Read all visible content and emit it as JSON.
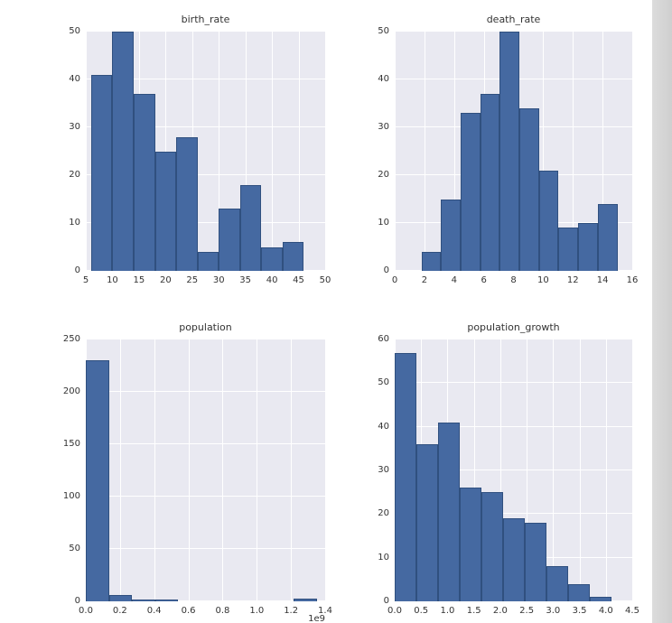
{
  "colors": {
    "axes_background": "#e9e9f1",
    "gridline": "#ffffff",
    "bar_fill": "#4569a1",
    "bar_edge": "#30507f",
    "tick_text": "#333333",
    "right_strip": "#d7d7d7"
  },
  "chart_data": [
    {
      "id": "birth_rate",
      "type": "bar",
      "subtype": "histogram",
      "title": "birth_rate",
      "xlim": [
        5,
        50
      ],
      "ylim": [
        0,
        50
      ],
      "xticks": [
        "5",
        "10",
        "15",
        "20",
        "25",
        "30",
        "35",
        "40",
        "45",
        "50"
      ],
      "yticks": [
        "0",
        "10",
        "20",
        "30",
        "40",
        "50"
      ],
      "grid": true,
      "bin_start": 6,
      "bin_width": 4.0,
      "values": [
        41,
        50,
        37,
        25,
        28,
        4,
        13,
        18,
        5,
        6
      ]
    },
    {
      "id": "death_rate",
      "type": "bar",
      "subtype": "histogram",
      "title": "death_rate",
      "xlim": [
        0,
        16
      ],
      "ylim": [
        0,
        50
      ],
      "xticks": [
        "0",
        "2",
        "4",
        "6",
        "8",
        "10",
        "12",
        "14",
        "16"
      ],
      "yticks": [
        "0",
        "10",
        "20",
        "30",
        "40",
        "50"
      ],
      "grid": true,
      "bin_start": 1.8,
      "bin_width": 1.32,
      "values": [
        4,
        15,
        33,
        37,
        50,
        34,
        21,
        9,
        10,
        14
      ]
    },
    {
      "id": "population",
      "type": "bar",
      "subtype": "histogram",
      "title": "population",
      "xlim": [
        0,
        1.4
      ],
      "ylim": [
        0,
        250
      ],
      "xticks": [
        "0.0",
        "0.2",
        "0.4",
        "0.6",
        "0.8",
        "1.0",
        "1.2",
        "1.4"
      ],
      "yticks": [
        "0",
        "50",
        "100",
        "150",
        "200",
        "250"
      ],
      "grid": true,
      "x_offset_label": "1e9",
      "bin_start": 0,
      "bin_width": 0.135,
      "values": [
        230,
        6,
        2,
        2,
        0,
        0,
        0,
        0,
        0,
        3
      ]
    },
    {
      "id": "population_growth",
      "type": "bar",
      "subtype": "histogram",
      "title": "population_growth",
      "xlim": [
        0,
        4.5
      ],
      "ylim": [
        0,
        60
      ],
      "xticks": [
        "0.0",
        "0.5",
        "1.0",
        "1.5",
        "2.0",
        "2.5",
        "3.0",
        "3.5",
        "4.0",
        "4.5"
      ],
      "yticks": [
        "0",
        "10",
        "20",
        "30",
        "40",
        "50",
        "60"
      ],
      "grid": true,
      "bin_start": 0,
      "bin_width": 0.41,
      "values": [
        57,
        36,
        41,
        26,
        25,
        19,
        18,
        8,
        4,
        1
      ]
    }
  ]
}
